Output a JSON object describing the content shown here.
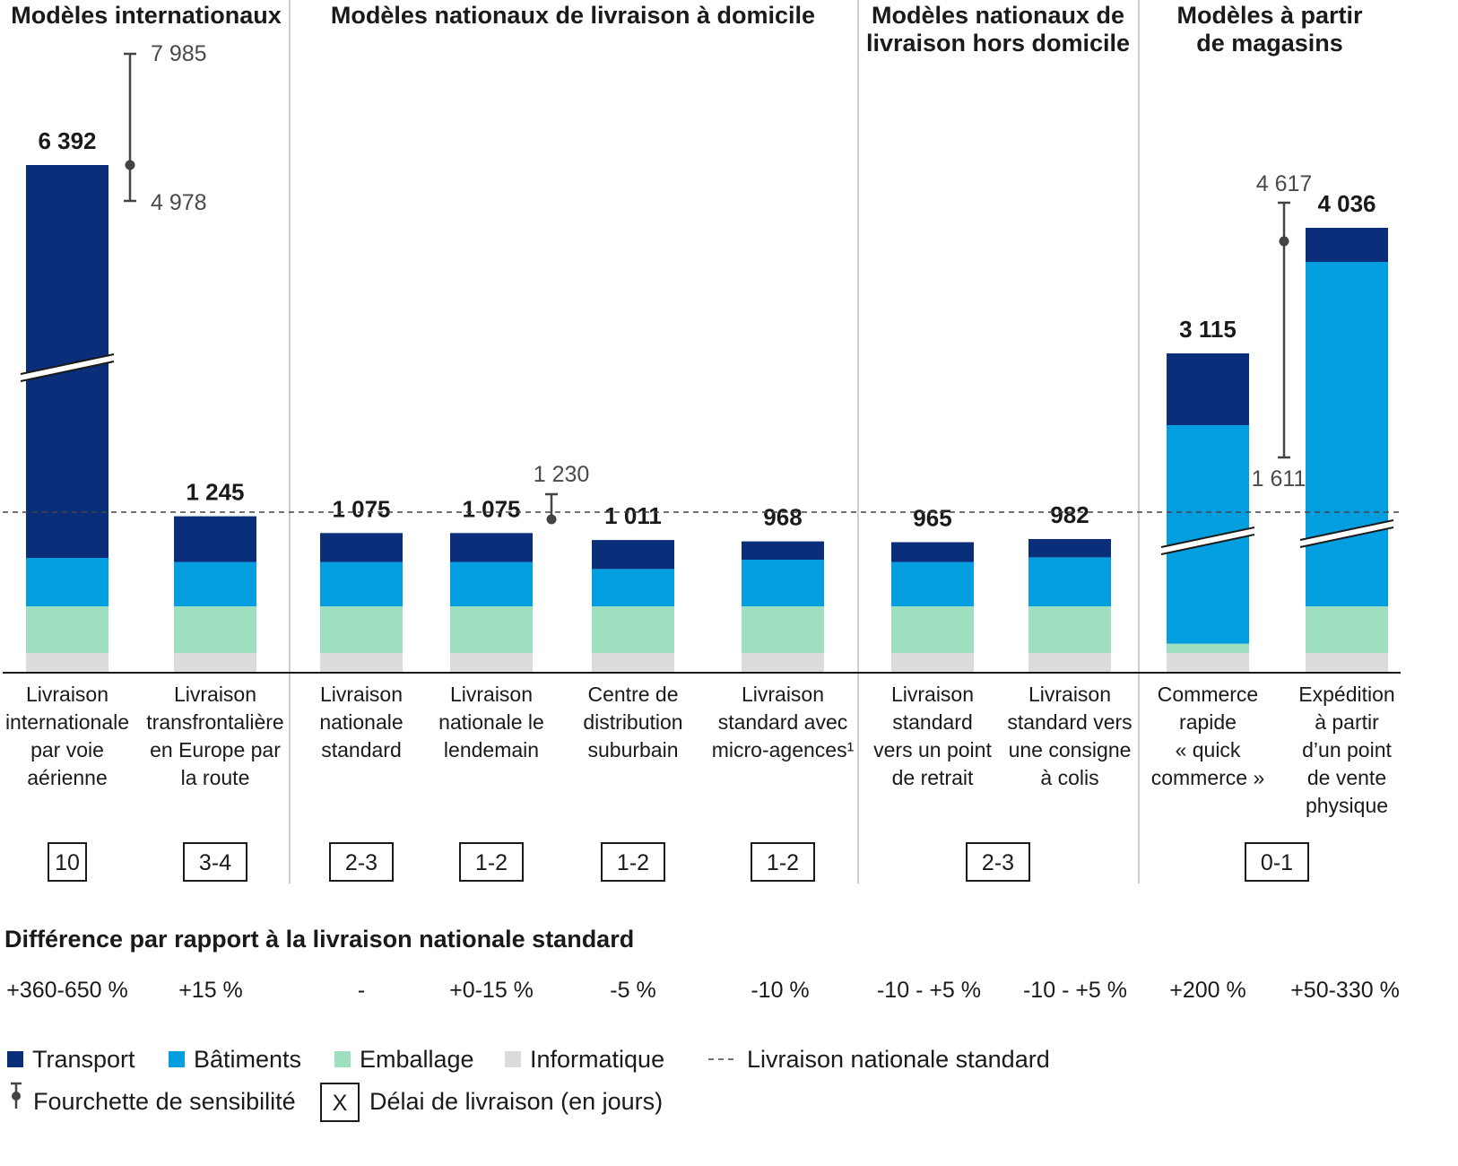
{
  "chart_data": {
    "type": "bar",
    "stacked": true,
    "series": [
      {
        "name": "Transport",
        "color": "#0a2e7a"
      },
      {
        "name": "Bâtiments",
        "color": "#039ee0"
      },
      {
        "name": "Emballage",
        "color": "#9ddfbf"
      },
      {
        "name": "Informatique",
        "color": "#dcdcdc"
      }
    ],
    "groups": [
      {
        "title": [
          "Modèles internationaux"
        ]
      },
      {
        "title": [
          "Modèles nationaux de livraison à domicile"
        ]
      },
      {
        "title": [
          "Modèles nationaux de",
          "livraison hors domicile"
        ]
      },
      {
        "title": [
          "Modèles à partir",
          "de magasins"
        ]
      }
    ],
    "categories": [
      {
        "group": 0,
        "label": [
          "Livraison",
          "internationale",
          "par voie",
          "aérienne"
        ],
        "total_label": "6 392",
        "total": 6392,
        "segments": [
          null,
          100,
          100,
          40
        ],
        "axis_break": true,
        "range": {
          "low_label": "4 978",
          "high_label": "7 985",
          "low": 4978,
          "high": 7985
        },
        "diff": "+360-650 %"
      },
      {
        "group": 0,
        "label": [
          "Livraison",
          "transfrontalière",
          "en Europe par",
          "la route"
        ],
        "total_label": "1 245",
        "total": 1245,
        "segments": [
          150,
          95,
          100,
          40
        ],
        "diff": "+15 %"
      },
      {
        "group": 1,
        "label": [
          "Livraison",
          "nationale",
          "standard"
        ],
        "total_label": "1 075",
        "total": 1075,
        "segments": [
          95,
          95,
          100,
          40
        ],
        "diff": "-"
      },
      {
        "group": 1,
        "label": [
          "Livraison",
          "nationale le",
          "lendemain"
        ],
        "total_label": "1 075",
        "total": 1075,
        "segments": [
          95,
          95,
          100,
          40
        ],
        "range": {
          "high_label": "1 230",
          "high": 1230
        },
        "diff": "+0-15 %"
      },
      {
        "group": 1,
        "label": [
          "Centre de",
          "distribution",
          "suburbain"
        ],
        "total_label": "1 011",
        "total": 1011,
        "segments": [
          95,
          80,
          100,
          40
        ],
        "diff": "-5 %"
      },
      {
        "group": 1,
        "label": [
          "Livraison",
          "standard avec",
          "micro-agences¹"
        ],
        "total_label": "968",
        "total": 968,
        "segments": [
          60,
          100,
          100,
          40
        ],
        "diff": "-10 %"
      },
      {
        "group": 2,
        "label": [
          "Livraison",
          "standard",
          "vers un point",
          "de retrait"
        ],
        "total_label": "965",
        "total": 965,
        "segments": [
          65,
          95,
          100,
          40
        ],
        "diff": "-10 - +5 %"
      },
      {
        "group": 2,
        "label": [
          "Livraison",
          "standard vers",
          "une consigne",
          "à colis"
        ],
        "total_label": "982",
        "total": 982,
        "segments": [
          60,
          105,
          100,
          40
        ],
        "diff": "-10 - +5 %"
      },
      {
        "group": 3,
        "label": [
          "Commerce",
          "rapide",
          "« quick",
          "commerce »"
        ],
        "total_label": "3 115",
        "total": 3115,
        "segments": [
          150,
          null,
          20,
          40
        ],
        "axis_break": true,
        "diff": "+200 %"
      },
      {
        "group": 3,
        "label": [
          "Expédition",
          "à  partir",
          "d’un point",
          "de vente",
          "physique"
        ],
        "total_label": "4 036",
        "total": 4036,
        "segments": [
          70,
          null,
          100,
          40
        ],
        "axis_break": true,
        "range": {
          "low_label": "1 611",
          "high_label": "4 617",
          "low": 1611,
          "high": 4617
        },
        "diff": "+50-330 %"
      }
    ],
    "delivery_days": [
      {
        "value": "10"
      },
      {
        "value": "3-4"
      },
      {
        "value": "2-3"
      },
      {
        "value": "1-2"
      },
      {
        "value": "1-2"
      },
      {
        "value": "1-2"
      },
      {
        "value": "2-3"
      },
      {
        "value": "0-1"
      }
    ],
    "reference_line": {
      "label": "Livraison nationale standard",
      "value": 1075
    },
    "diff_title": "Différence par rapport à la livraison nationale standard",
    "legend": {
      "items": [
        {
          "label": "Transport",
          "kind": "swatch",
          "color": "#0a2e7a"
        },
        {
          "label": "Bâtiments",
          "kind": "swatch",
          "color": "#039ee0"
        },
        {
          "label": "Emballage",
          "kind": "swatch",
          "color": "#9ddfbf"
        },
        {
          "label": "Informatique",
          "kind": "swatch",
          "color": "#dcdcdc"
        },
        {
          "label": "Livraison nationale standard",
          "kind": "dashed"
        },
        {
          "label": "Fourchette de sensibilité",
          "kind": "range"
        },
        {
          "label": "Délai de livraison (en jours)",
          "kind": "box",
          "box_text": "X"
        }
      ]
    }
  }
}
